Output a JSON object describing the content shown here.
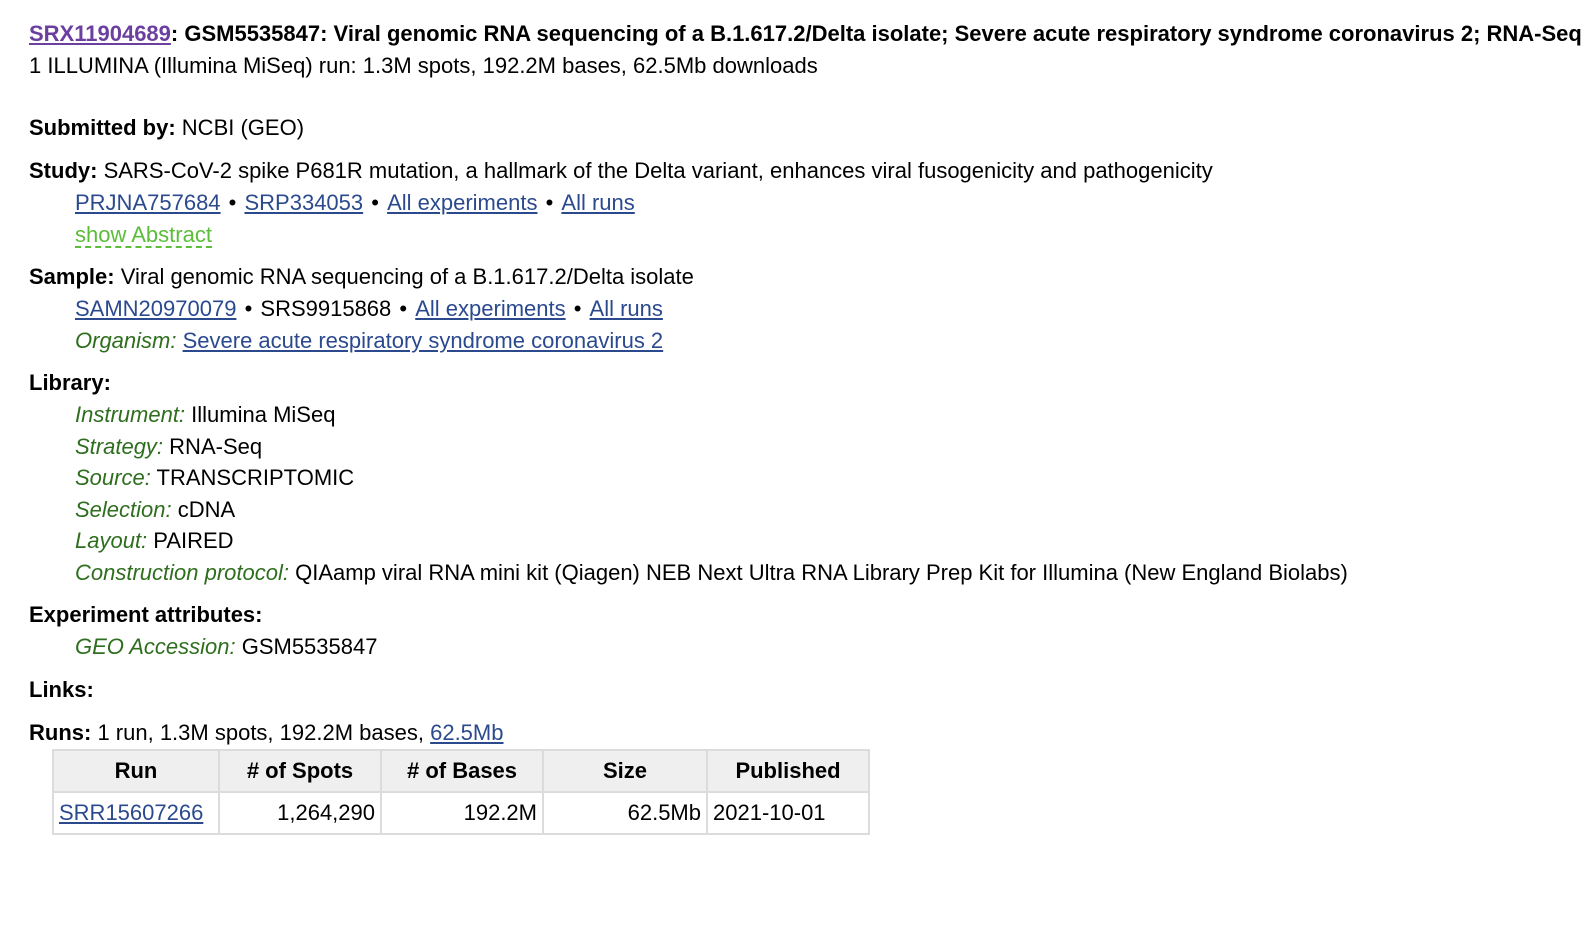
{
  "experiment": {
    "accession": "SRX11904689",
    "title_rest": ": GSM5535847: Viral genomic RNA sequencing of a B.1.617.2/Delta isolate; Severe acute respiratory syndrome coronavirus 2; RNA-Seq",
    "summary": "1 ILLUMINA (Illumina MiSeq) run: 1.3M spots, 192.2M bases, 62.5Mb downloads"
  },
  "submitted": {
    "label": "Submitted by:",
    "value": "NCBI (GEO)"
  },
  "study": {
    "label": "Study:",
    "value": "SARS-CoV-2 spike P681R mutation, a hallmark of the Delta variant, enhances viral fusogenicity and pathogenicity",
    "bioproject": "PRJNA757684",
    "srp": "SRP334053",
    "all_experiments": "All experiments",
    "all_runs": "All runs",
    "show_abstract": "show Abstract"
  },
  "sample": {
    "label": "Sample:",
    "value": "Viral genomic RNA sequencing of a B.1.617.2/Delta isolate",
    "biosample": "SAMN20970079",
    "srs": "SRS9915868",
    "all_experiments": "All experiments",
    "all_runs": "All runs",
    "organism_label": "Organism:",
    "organism": "Severe acute respiratory syndrome coronavirus 2"
  },
  "library": {
    "label": "Library:",
    "fields": [
      {
        "name": "Instrument:",
        "value": "Illumina MiSeq"
      },
      {
        "name": "Strategy:",
        "value": "RNA-Seq"
      },
      {
        "name": "Source:",
        "value": "TRANSCRIPTOMIC"
      },
      {
        "name": "Selection:",
        "value": "cDNA"
      },
      {
        "name": "Layout:",
        "value": "PAIRED"
      },
      {
        "name": "Construction protocol:",
        "value": "QIAamp viral RNA mini kit (Qiagen) NEB Next Ultra RNA Library Prep Kit for Illumina (New England Biolabs)"
      }
    ]
  },
  "attributes": {
    "label": "Experiment attributes:",
    "fields": [
      {
        "name": "GEO Accession:",
        "value": "GSM5535847"
      }
    ]
  },
  "links": {
    "label": "Links:"
  },
  "runs": {
    "label": "Runs:",
    "summary": "1 run, 1.3M spots, 192.2M bases,",
    "download": "62.5Mb",
    "headers": [
      "Run",
      "# of Spots",
      "# of Bases",
      "Size",
      "Published"
    ],
    "rows": [
      {
        "run": "SRR15607266",
        "spots": "1,264,290",
        "bases": "192.2M",
        "size": "62.5Mb",
        "published": "2021-10-01"
      }
    ]
  },
  "colors": {
    "link": "#2b4a8e",
    "visited_link": "#6b3fa0",
    "field_name": "#2e6e1e",
    "abstract_link": "#5bbd3a"
  }
}
